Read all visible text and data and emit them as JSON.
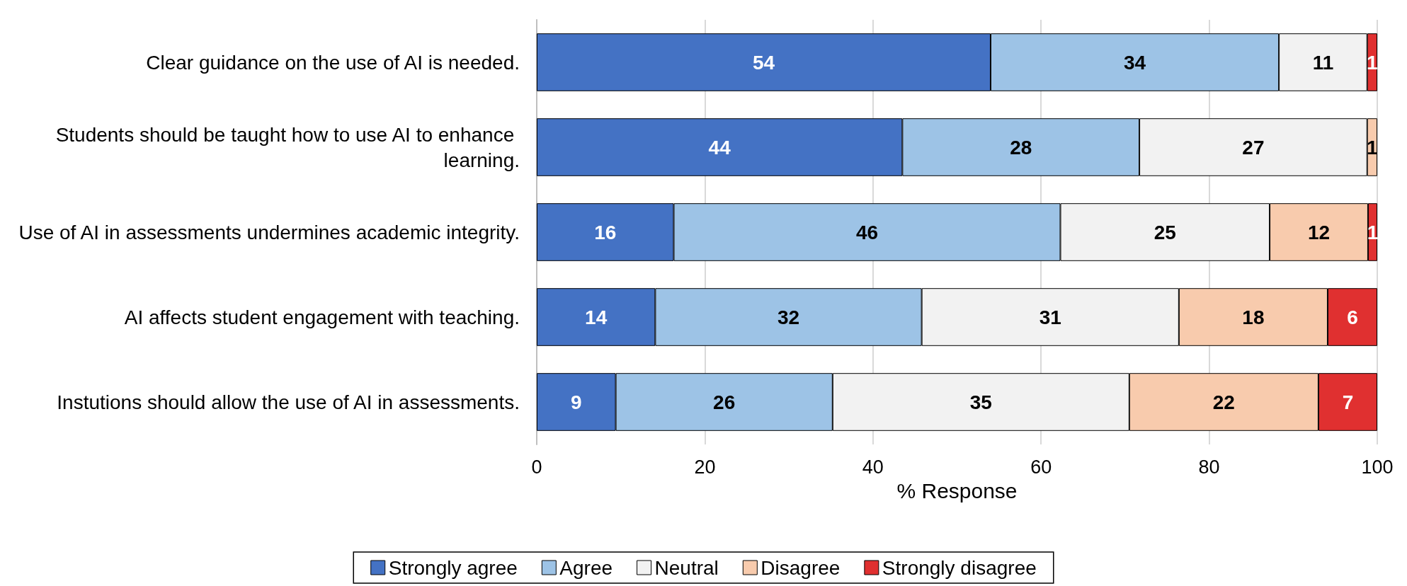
{
  "chart_data": {
    "type": "bar",
    "orientation": "horizontal",
    "stacked": true,
    "xlabel": "% Response",
    "categories": [
      "Clear guidance on the use of AI is needed.",
      "Students should be taught how to use AI to enhance learning.",
      "Use of AI in assessments undermines academic integrity.",
      "AI affects student engagement with teaching.",
      "Instutions should allow the use of AI in assessments."
    ],
    "series": [
      {
        "name": "Strongly agree",
        "color": "#4472c4",
        "values": [
          54.0,
          43.5,
          16.3,
          14.1,
          9.4
        ],
        "value_labels": [
          "54",
          "44",
          "16",
          "14",
          "9"
        ]
      },
      {
        "name": "Agree",
        "color": "#9dc3e6",
        "values": [
          34.3,
          28.2,
          46.0,
          31.7,
          25.8
        ],
        "value_labels": [
          "34",
          "28",
          "46",
          "32",
          "26"
        ]
      },
      {
        "name": "Neutral",
        "color": "#f2f2f2",
        "values": [
          10.5,
          27.1,
          24.9,
          30.6,
          35.3
        ],
        "value_labels": [
          "11",
          "27",
          "25",
          "31",
          "35"
        ]
      },
      {
        "name": "Disagree",
        "color": "#f8cbad",
        "values": [
          null,
          1.2,
          11.7,
          17.7,
          22.5
        ],
        "value_labels": [
          null,
          "1",
          "12",
          "18",
          "22"
        ]
      },
      {
        "name": "Strongly disagree",
        "color": "#e03030",
        "values": [
          1.2,
          null,
          1.1,
          5.9,
          7.0
        ],
        "value_labels": [
          "1",
          null,
          "1",
          "6",
          "7"
        ]
      }
    ],
    "xlim": [
      0,
      100
    ],
    "xticks": [
      0,
      20,
      40,
      60,
      80,
      100
    ],
    "grid": "x",
    "legend": "bottom"
  }
}
